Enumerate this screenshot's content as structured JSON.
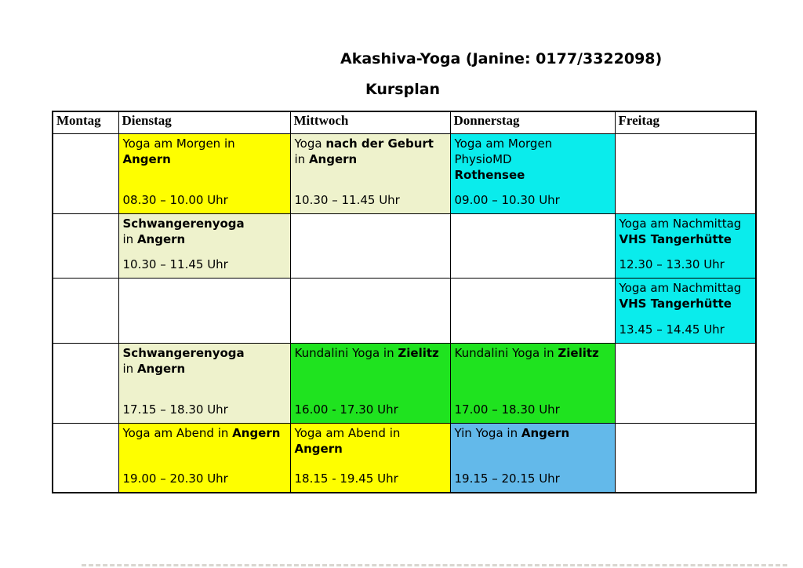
{
  "page": {
    "title": "Akashiva-Yoga (Janine: 0177/3322098)",
    "subtitle": "Kursplan"
  },
  "colors": {
    "white": "#FFFFFF",
    "yellow": "#FEFE00",
    "cream": "#EEF2CC",
    "cyan": "#0AECEC",
    "green": "#1FE31F",
    "blue": "#63B9EA"
  },
  "table": {
    "columns": [
      "Montag",
      "Dienstag",
      "Mittwoch",
      "Donnerstag",
      "Freitag"
    ],
    "rows": [
      {
        "cells": [
          {
            "day": "Montag",
            "color": "white"
          },
          {
            "day": "Dienstag",
            "color": "yellow",
            "lines": [
              [
                {
                  "t": "Yoga am Morgen in "
                },
                {
                  "t": "Angern",
                  "b": true
                }
              ]
            ],
            "time": "08.30 – 10.00 Uhr"
          },
          {
            "day": "Mittwoch",
            "color": "cream",
            "lines": [
              [
                {
                  "t": "Yoga "
                },
                {
                  "t": "nach der Geburt",
                  "b": true
                }
              ],
              [
                {
                  "t": "in "
                },
                {
                  "t": "Angern",
                  "b": true
                }
              ]
            ],
            "time": "10.30 – 11.45 Uhr"
          },
          {
            "day": "Donnerstag",
            "color": "cyan",
            "lines": [
              [
                {
                  "t": "Yoga am Morgen"
                }
              ],
              [
                {
                  "t": "PhysioMD"
                }
              ],
              [
                {
                  "t": "Rothensee",
                  "b": true
                }
              ]
            ],
            "time": "09.00 – 10.30 Uhr"
          },
          {
            "day": "Freitag",
            "color": "white"
          }
        ]
      },
      {
        "cells": [
          {
            "day": "Montag",
            "color": "white"
          },
          {
            "day": "Dienstag",
            "color": "cream",
            "lines": [
              [
                {
                  "t": "Schwangerenyoga",
                  "b": true
                }
              ],
              [
                {
                  "t": "in "
                },
                {
                  "t": "Angern",
                  "b": true
                }
              ]
            ],
            "time": "10.30 – 11.45 Uhr"
          },
          {
            "day": "Mittwoch",
            "color": "white"
          },
          {
            "day": "Donnerstag",
            "color": "white"
          },
          {
            "day": "Freitag",
            "color": "cyan",
            "lines": [
              [
                {
                  "t": "Yoga am Nachmittag"
                }
              ],
              [
                {
                  "t": "VHS Tangerhütte",
                  "b": true
                }
              ]
            ],
            "time": "12.30 – 13.30 Uhr"
          }
        ]
      },
      {
        "cells": [
          {
            "day": "Montag",
            "color": "white"
          },
          {
            "day": "Dienstag",
            "color": "white"
          },
          {
            "day": "Mittwoch",
            "color": "white"
          },
          {
            "day": "Donnerstag",
            "color": "white"
          },
          {
            "day": "Freitag",
            "color": "cyan",
            "lines": [
              [
                {
                  "t": "Yoga am Nachmittag"
                }
              ],
              [
                {
                  "t": "VHS Tangerhütte",
                  "b": true
                }
              ]
            ],
            "time": "13.45 – 14.45 Uhr"
          }
        ]
      },
      {
        "cells": [
          {
            "day": "Montag",
            "color": "white"
          },
          {
            "day": "Dienstag",
            "color": "cream",
            "lines": [
              [
                {
                  "t": "Schwangerenyoga",
                  "b": true
                }
              ],
              [
                {
                  "t": "in "
                },
                {
                  "t": "Angern",
                  "b": true
                }
              ]
            ],
            "time": "17.15 – 18.30 Uhr"
          },
          {
            "day": "Mittwoch",
            "color": "green",
            "lines": [
              [
                {
                  "t": "Kundalini Yoga in "
                },
                {
                  "t": "Zielitz",
                  "b": true
                }
              ]
            ],
            "time": "16.00 - 17.30 Uhr"
          },
          {
            "day": "Donnerstag",
            "color": "green",
            "lines": [
              [
                {
                  "t": "Kundalini Yoga in "
                },
                {
                  "t": "Zielitz",
                  "b": true
                }
              ]
            ],
            "time": "17.00 – 18.30 Uhr"
          },
          {
            "day": "Freitag",
            "color": "white"
          }
        ]
      },
      {
        "cells": [
          {
            "day": "Montag",
            "color": "white"
          },
          {
            "day": "Dienstag",
            "color": "yellow",
            "lines": [
              [
                {
                  "t": "Yoga am Abend in "
                },
                {
                  "t": "Angern",
                  "b": true
                }
              ]
            ],
            "time": "19.00 – 20.30 Uhr"
          },
          {
            "day": "Mittwoch",
            "color": "yellow",
            "lines": [
              [
                {
                  "t": "Yoga am Abend in "
                },
                {
                  "t": "Angern",
                  "b": true
                }
              ]
            ],
            "time": "18.15 - 19.45 Uhr"
          },
          {
            "day": "Donnerstag",
            "color": "blue",
            "lines": [
              [
                {
                  "t": "Yin Yoga in "
                },
                {
                  "t": "Angern",
                  "b": true
                }
              ]
            ],
            "time": "19.15 – 20.15 Uhr"
          },
          {
            "day": "Freitag",
            "color": "white"
          }
        ]
      }
    ]
  }
}
